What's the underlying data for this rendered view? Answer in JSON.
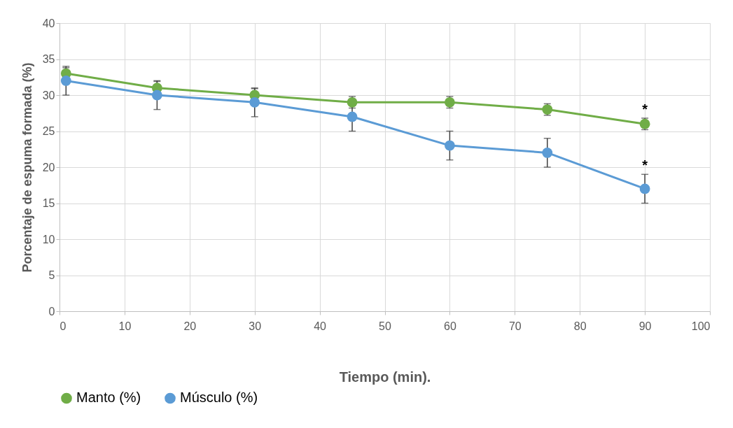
{
  "chart_data": {
    "type": "line",
    "xlabel": "Tiempo (min).",
    "ylabel": "Porcentaje de espuma formada (%)",
    "x": [
      1,
      15,
      30,
      45,
      60,
      75,
      90
    ],
    "series": [
      {
        "name": "Manto (%)",
        "color": "#70ad47",
        "values": [
          33,
          31,
          30,
          29,
          29,
          28,
          26
        ],
        "errors": [
          0.8,
          0.9,
          0.9,
          0.8,
          0.8,
          0.8,
          0.8
        ]
      },
      {
        "name": "Músculo (%)",
        "color": "#5b9bd5",
        "values": [
          32,
          30,
          29,
          27,
          23,
          22,
          17
        ],
        "errors": [
          2,
          2,
          2,
          2,
          2,
          2,
          2
        ]
      }
    ],
    "xlim": [
      0,
      100
    ],
    "xticks": [
      0,
      10,
      20,
      30,
      40,
      50,
      60,
      70,
      80,
      90,
      100
    ],
    "ylim": [
      0,
      40
    ],
    "yticks": [
      0,
      5,
      10,
      15,
      20,
      25,
      30,
      35,
      40
    ],
    "annotations": [
      {
        "text": "*",
        "x": 90,
        "y": 26.8
      },
      {
        "text": "*",
        "x": 90,
        "y": 19
      }
    ],
    "grid": true,
    "legend": "bottom",
    "marker": "circle",
    "line_style": "solid"
  }
}
